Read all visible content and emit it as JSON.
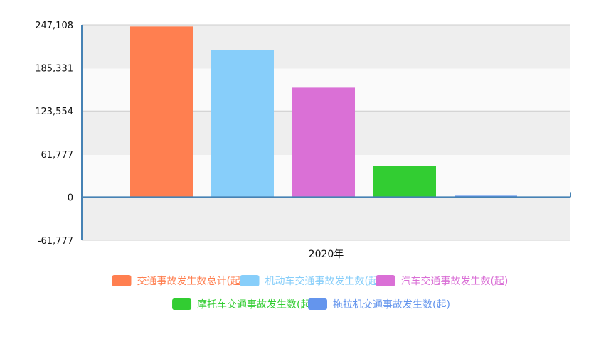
{
  "chart_data": {
    "type": "bar",
    "categories": [
      "2020年"
    ],
    "series": [
      {
        "name": "交通事故发生数总计(起)",
        "values": [
          244700
        ],
        "color": "#ff7f50"
      },
      {
        "name": "机动车交通事故发生数(起)",
        "values": [
          211000
        ],
        "color": "#87cefa"
      },
      {
        "name": "汽车交通事故发生数(起)",
        "values": [
          157000
        ],
        "color": "#da70d6"
      },
      {
        "name": "摩托车交通事故发生数(起)",
        "values": [
          44500
        ],
        "color": "#32cd32"
      },
      {
        "name": "拖拉机交通事故发生数(起)",
        "values": [
          500
        ],
        "color": "#6495ed"
      }
    ],
    "yticks": [
      -61777,
      0,
      61777,
      123554,
      185331,
      247108
    ],
    "ytick_labels": [
      "-61,777",
      "0",
      "61,777",
      "123,554",
      "185,331",
      "247,108"
    ],
    "ylim": [
      -61777,
      247108
    ],
    "grid": true,
    "legend_position": "bottom"
  }
}
